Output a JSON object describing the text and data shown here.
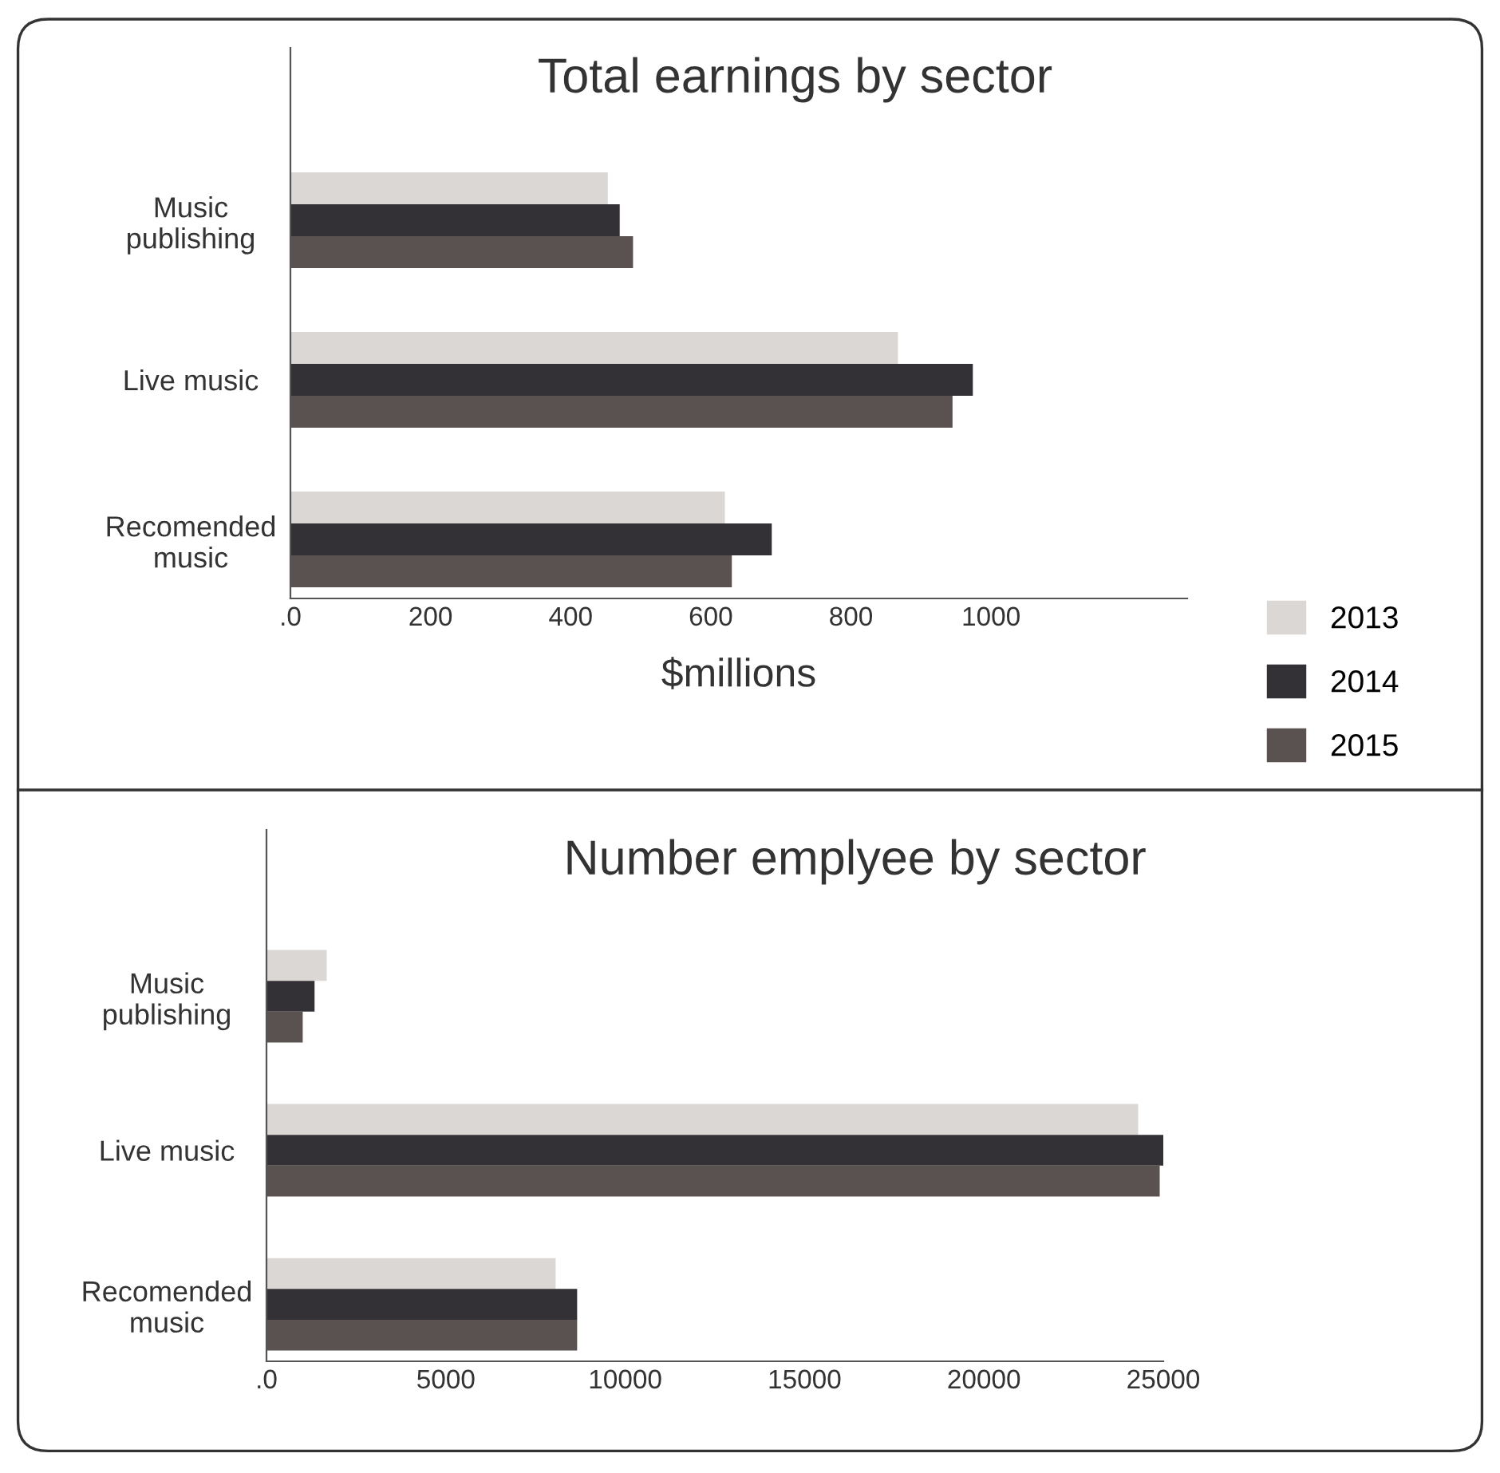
{
  "chart_data": [
    {
      "type": "bar",
      "orientation": "horizontal",
      "title": "Total earnings by sector",
      "xlabel": "$millions",
      "categories": [
        "Music\npublishing",
        "Live music",
        "Recomended\nmusic"
      ],
      "series": [
        {
          "name": "2013",
          "color": "#dbd7d4",
          "values": [
            453,
            867,
            620
          ]
        },
        {
          "name": "2014",
          "color": "#333135",
          "values": [
            470,
            974,
            687
          ]
        },
        {
          "name": "2015",
          "color": "#5a5250",
          "values": [
            489,
            945,
            630
          ]
        }
      ],
      "xlim": [
        0,
        1280
      ],
      "xticks": [
        {
          "value": 0,
          "label": ".0"
        },
        200,
        400,
        600,
        800,
        1000
      ],
      "grid": false,
      "legend": "bottom right"
    },
    {
      "type": "bar",
      "orientation": "horizontal",
      "title": "Number emplyee by sector",
      "categories": [
        "Music\npublishing",
        "Live music",
        "Recomended\nmusic"
      ],
      "series": [
        {
          "color": "#dbd7d4",
          "values": [
            1680,
            24300,
            8060
          ]
        },
        {
          "color": "#333135",
          "values": [
            1340,
            25000,
            8660
          ]
        },
        {
          "color": "#5a5250",
          "values": [
            1010,
            24900,
            8660
          ]
        }
      ],
      "xlim": [
        0,
        25000
      ],
      "xticks": [
        {
          "value": 0,
          "label": ".0"
        },
        5000,
        10000,
        15000,
        20000,
        25000
      ],
      "grid": false
    }
  ]
}
